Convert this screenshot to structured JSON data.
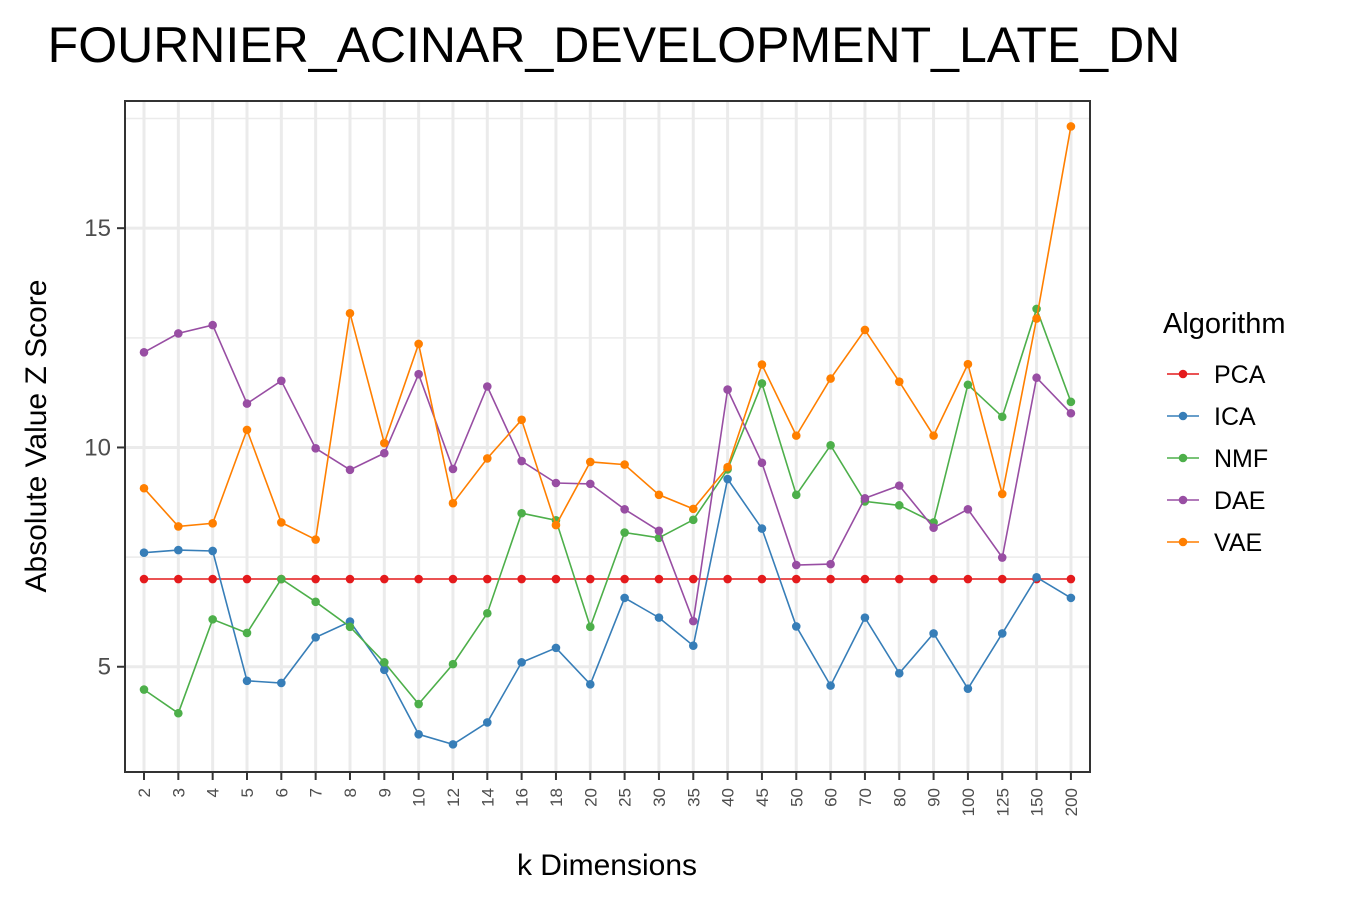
{
  "chart_data": {
    "type": "line",
    "title": "FOURNIER_ACINAR_DEVELOPMENT_LATE_DN",
    "xlabel": "k Dimensions",
    "ylabel": "Absolute Value Z Score",
    "categories": [
      "2",
      "3",
      "4",
      "5",
      "6",
      "7",
      "8",
      "9",
      "10",
      "12",
      "14",
      "16",
      "18",
      "20",
      "25",
      "30",
      "35",
      "40",
      "45",
      "50",
      "60",
      "70",
      "80",
      "90",
      "100",
      "125",
      "150",
      "200"
    ],
    "y_ticks": [
      5,
      10,
      15
    ],
    "ylim": [
      2.6,
      17.9
    ],
    "grid": true,
    "legend": {
      "title": "Algorithm",
      "position": "right"
    },
    "series": [
      {
        "name": "PCA",
        "color": "#e41a1c",
        "values": [
          7.0,
          7.0,
          7.0,
          7.0,
          7.0,
          7.0,
          7.0,
          7.0,
          7.0,
          7.0,
          7.0,
          7.0,
          7.0,
          7.0,
          7.0,
          7.0,
          7.0,
          7.0,
          7.0,
          7.0,
          7.0,
          7.0,
          7.0,
          7.0,
          7.0,
          7.0,
          7.0,
          7.0
        ]
      },
      {
        "name": "ICA",
        "color": "#377eb8",
        "values": [
          7.6,
          7.66,
          7.64,
          4.68,
          4.63,
          5.67,
          6.03,
          4.93,
          3.46,
          3.23,
          3.73,
          5.1,
          5.43,
          4.6,
          6.57,
          6.12,
          5.48,
          9.28,
          8.15,
          5.92,
          4.57,
          6.12,
          4.85,
          5.76,
          4.5,
          5.76,
          7.04,
          6.57
        ]
      },
      {
        "name": "NMF",
        "color": "#4daf4a",
        "values": [
          4.48,
          3.94,
          6.08,
          5.77,
          7.0,
          6.48,
          5.91,
          5.1,
          4.15,
          5.06,
          6.22,
          8.5,
          8.34,
          5.91,
          8.06,
          7.94,
          8.35,
          9.5,
          11.46,
          8.92,
          10.05,
          8.77,
          8.68,
          8.29,
          11.43,
          10.7,
          13.16,
          11.04
        ]
      },
      {
        "name": "DAE",
        "color": "#984ea3",
        "values": [
          12.17,
          12.6,
          12.79,
          11.0,
          11.52,
          9.98,
          9.49,
          9.87,
          11.67,
          9.51,
          11.39,
          9.69,
          9.19,
          9.17,
          8.59,
          8.1,
          6.04,
          11.32,
          9.65,
          7.32,
          7.34,
          8.84,
          9.13,
          8.17,
          8.59,
          7.49,
          11.59,
          10.78
        ]
      },
      {
        "name": "VAE",
        "color": "#ff7f00",
        "values": [
          9.07,
          8.2,
          8.27,
          10.4,
          8.29,
          7.9,
          13.06,
          10.1,
          12.36,
          8.73,
          9.75,
          10.63,
          8.23,
          9.67,
          9.61,
          8.92,
          8.6,
          9.55,
          11.89,
          10.27,
          11.57,
          12.68,
          11.5,
          10.27,
          11.9,
          8.94,
          12.94,
          17.32
        ]
      }
    ]
  }
}
